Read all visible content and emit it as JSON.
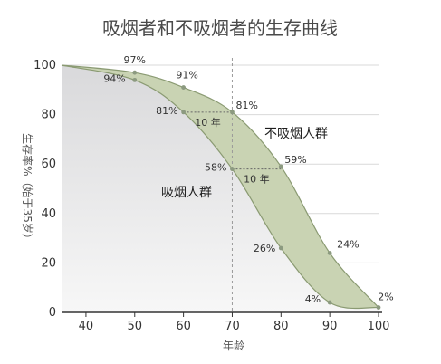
{
  "chart_data": {
    "type": "area",
    "title": "吸烟者和不吸烟者的生存曲线",
    "xlabel": "年龄",
    "ylabel": "生存率%（始于35岁）",
    "xlim": [
      35,
      100
    ],
    "ylim": [
      0,
      100
    ],
    "x_ticks": [
      40,
      50,
      60,
      70,
      80,
      90,
      100
    ],
    "y_ticks": [
      0,
      20,
      40,
      60,
      80,
      100
    ],
    "series": [
      {
        "name": "不吸烟人群",
        "x": [
          35,
          50,
          60,
          70,
          80,
          90,
          100
        ],
        "y": [
          100,
          97,
          91,
          81,
          59,
          24,
          2
        ]
      },
      {
        "name": "吸烟人群",
        "x": [
          35,
          50,
          60,
          70,
          80,
          90,
          100
        ],
        "y": [
          100,
          94,
          81,
          58,
          26,
          4,
          2
        ]
      }
    ],
    "point_labels": [
      {
        "text": "97%",
        "x": 50,
        "y": 97
      },
      {
        "text": "91%",
        "x": 60,
        "y": 91
      },
      {
        "text": "81%",
        "x": 70,
        "y": 81
      },
      {
        "text": "59%",
        "x": 80,
        "y": 59
      },
      {
        "text": "24%",
        "x": 90,
        "y": 24
      },
      {
        "text": "2%",
        "x": 100,
        "y": 2
      },
      {
        "text": "94%",
        "x": 50,
        "y": 94
      },
      {
        "text": "81%",
        "x": 60,
        "y": 81
      },
      {
        "text": "58%",
        "x": 70,
        "y": 58
      },
      {
        "text": "26%",
        "x": 80,
        "y": 26
      },
      {
        "text": "4%",
        "x": 90,
        "y": 4
      }
    ],
    "gap_annotations": [
      {
        "text": "10 年",
        "y": 81,
        "x_from": 60,
        "x_to": 70
      },
      {
        "text": "10 年",
        "y": 58,
        "x_from": 70,
        "x_to": 80
      }
    ],
    "reference_line_x": 70,
    "grid": true,
    "colors": {
      "band": "#c9d3b3",
      "band_stroke": "#8a9a72",
      "below_top": "#d9d9db",
      "below_bottom": "#f7f7f7",
      "grid": "#d9d9d9",
      "ref_line": "#9a9a9a",
      "point": "#8c9a80",
      "axis": "#333333"
    }
  }
}
